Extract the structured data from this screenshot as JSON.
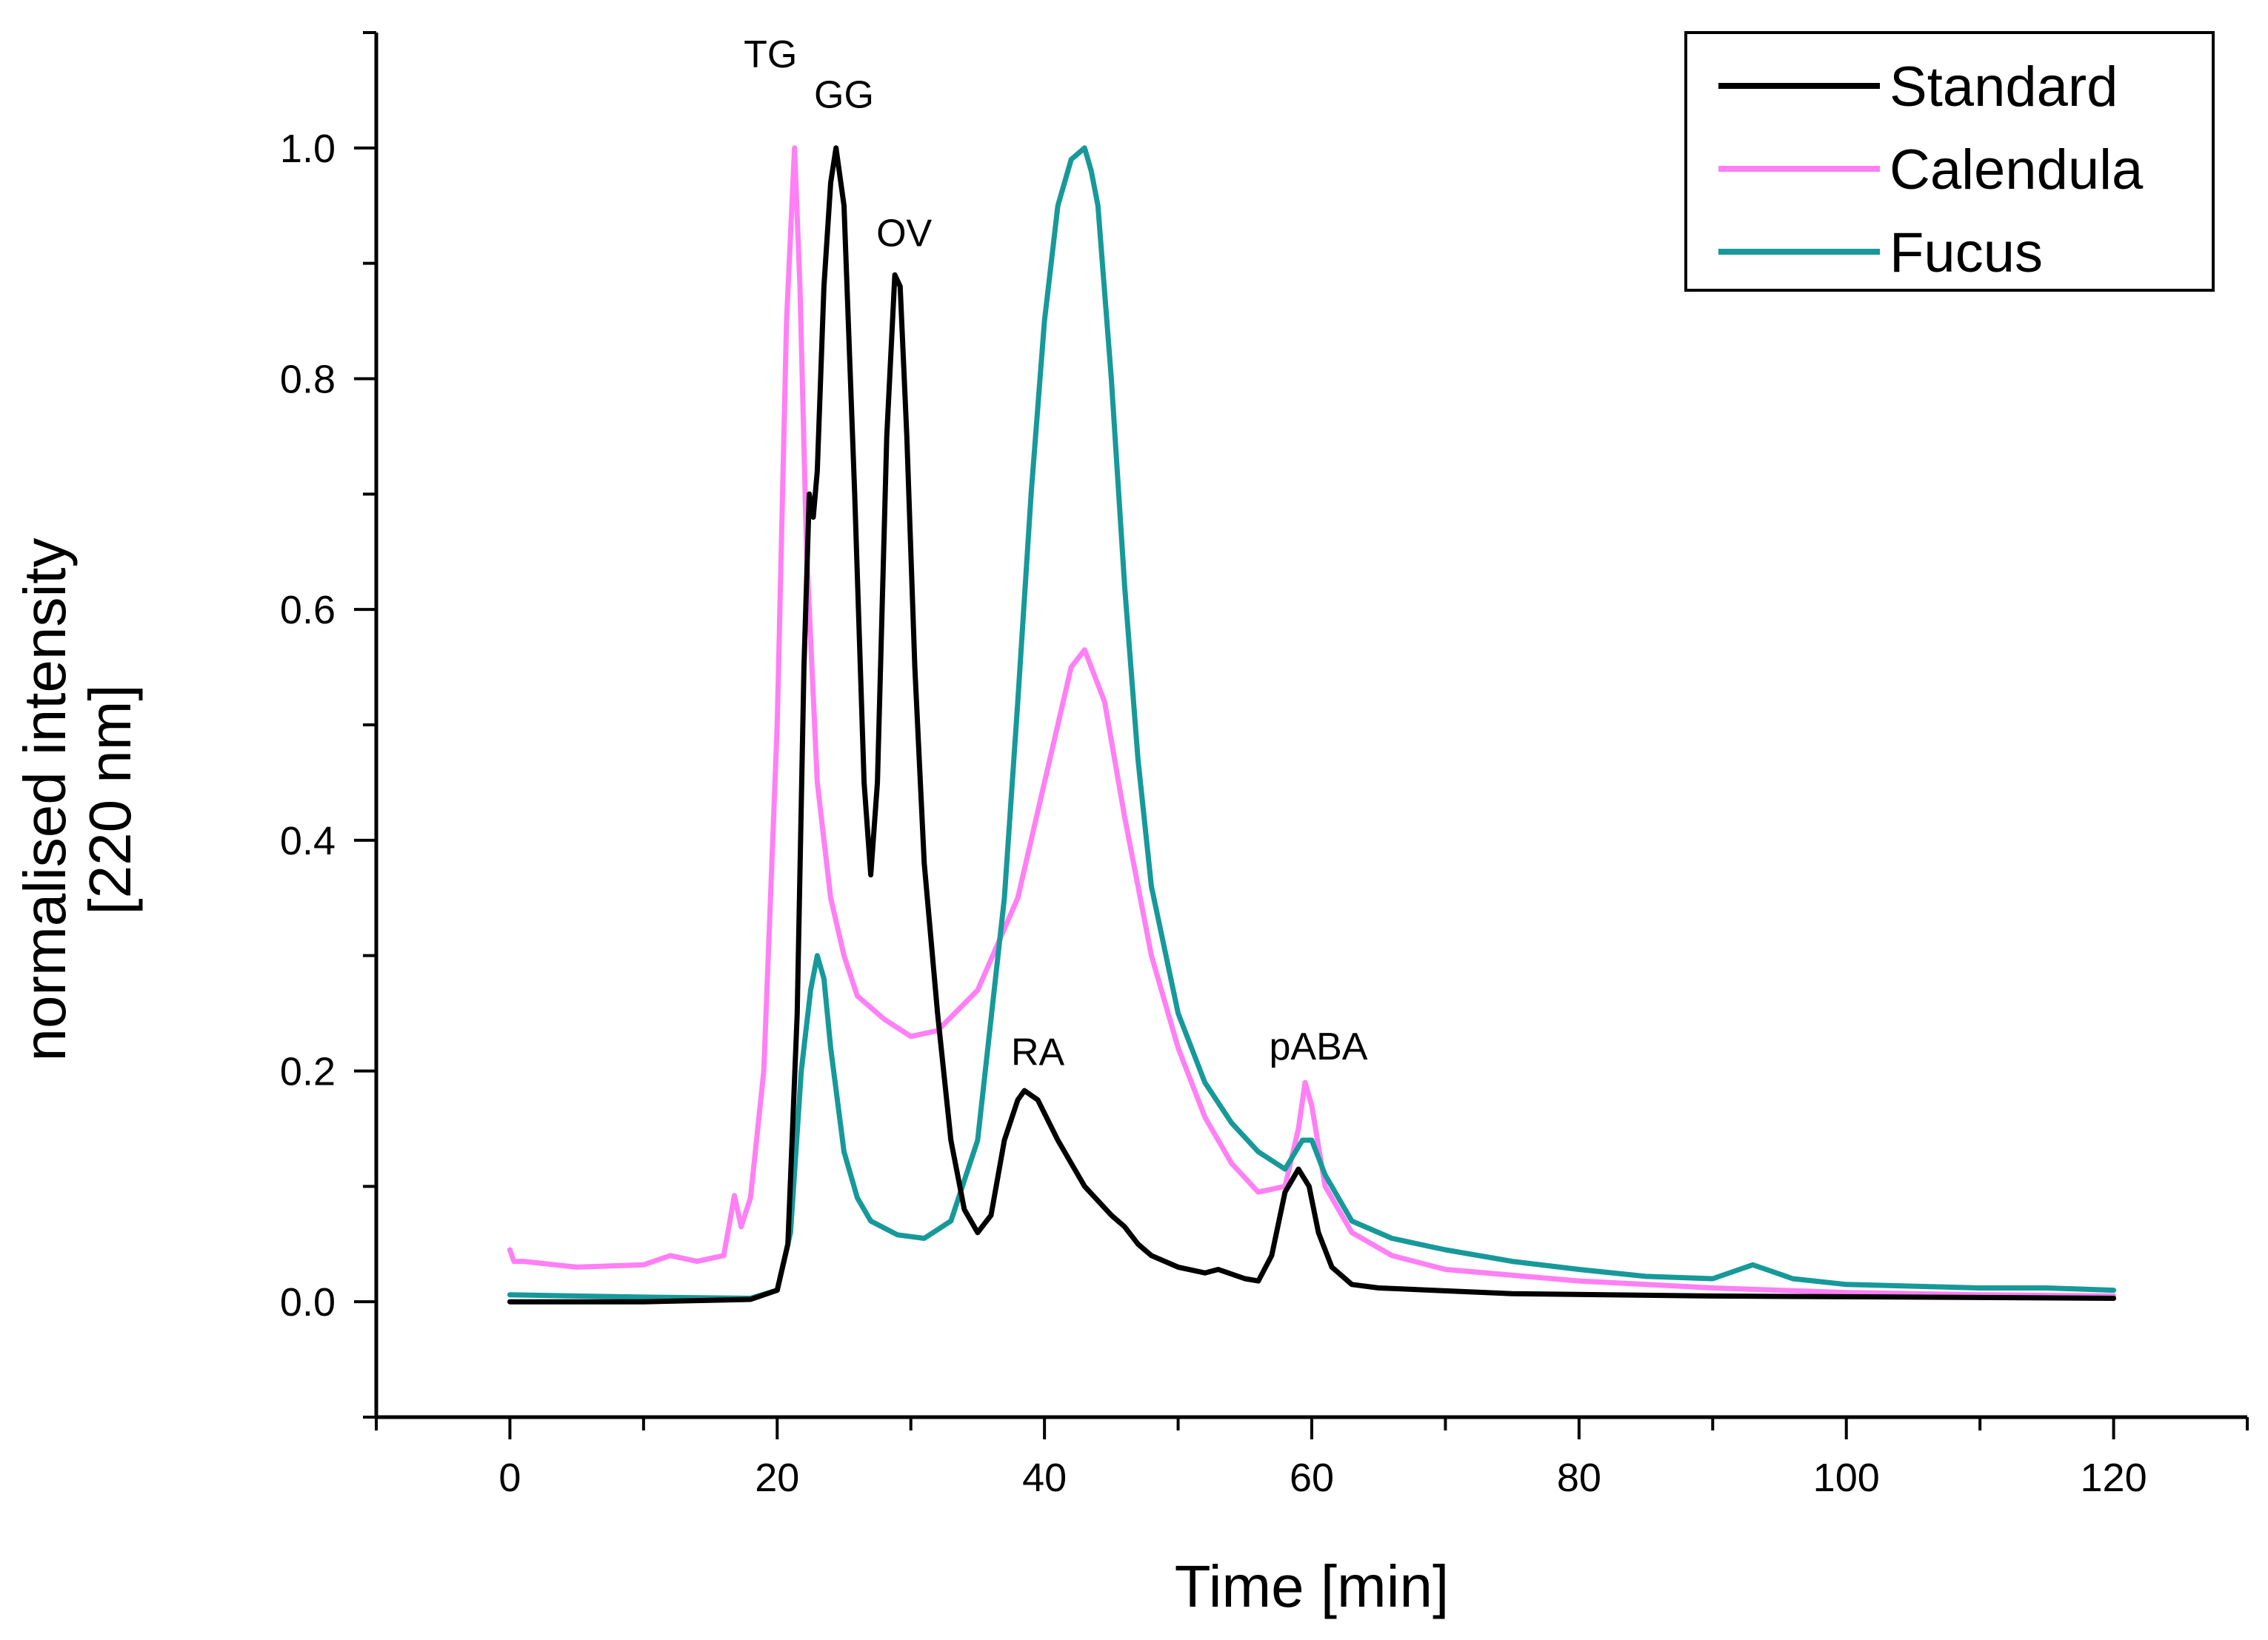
{
  "chart_data": {
    "type": "line",
    "title": "",
    "xlabel": "Time [min]",
    "ylabel": [
      "normalised intensity",
      "[220 nm]"
    ],
    "xlim": [
      -10,
      130
    ],
    "ylim": [
      -0.1,
      1.1
    ],
    "x_ticks": [
      0,
      20,
      40,
      60,
      80,
      100,
      120
    ],
    "x_tick_labels": [
      "0",
      "20",
      "40",
      "60",
      "80",
      "100",
      "120"
    ],
    "y_ticks": [
      0.0,
      0.2,
      0.4,
      0.6,
      0.8,
      1.0
    ],
    "y_tick_labels": [
      "0.0",
      "0.2",
      "0.4",
      "0.6",
      "0.8",
      "1.0"
    ],
    "grid": false,
    "legend_position": "top-right",
    "series": [
      {
        "name": "Standard",
        "color": "#000000",
        "x": [
          0,
          10,
          18,
          20,
          20.8,
          21.5,
          22.0,
          22.4,
          22.7,
          23.0,
          23.5,
          24.0,
          24.4,
          25.0,
          25.8,
          26.5,
          27.0,
          27.5,
          28.2,
          28.8,
          29.2,
          29.7,
          30.3,
          31.0,
          32.0,
          33.0,
          34.0,
          35.0,
          36.0,
          37.0,
          38.0,
          38.5,
          39.5,
          41.0,
          43.0,
          45.0,
          46.0,
          47.0,
          48.0,
          50.0,
          52.0,
          53.0,
          55.0,
          56.0,
          57.0,
          58.0,
          59.0,
          59.8,
          60.5,
          61.5,
          63.0,
          65.0,
          69.0,
          75.0,
          90.0,
          105.0,
          120.0
        ],
        "values": [
          0.0,
          0.0,
          0.002,
          0.01,
          0.05,
          0.25,
          0.55,
          0.7,
          0.68,
          0.72,
          0.88,
          0.97,
          1.0,
          0.95,
          0.7,
          0.45,
          0.37,
          0.45,
          0.75,
          0.89,
          0.88,
          0.75,
          0.55,
          0.38,
          0.25,
          0.14,
          0.08,
          0.06,
          0.075,
          0.14,
          0.175,
          0.183,
          0.175,
          0.14,
          0.1,
          0.075,
          0.065,
          0.05,
          0.04,
          0.03,
          0.025,
          0.028,
          0.02,
          0.018,
          0.04,
          0.095,
          0.115,
          0.1,
          0.06,
          0.03,
          0.015,
          0.012,
          0.01,
          0.007,
          0.005,
          0.004,
          0.003
        ]
      },
      {
        "name": "Calendula",
        "color": "#ff7ff5",
        "x": [
          0,
          0.3,
          1.0,
          5.0,
          10.0,
          12.0,
          14.0,
          16.0,
          16.8,
          17.3,
          18.0,
          19.0,
          20.0,
          20.7,
          21.3,
          21.7,
          22.2,
          23.0,
          24.0,
          25.0,
          26.0,
          28.0,
          30.0,
          32.0,
          35.0,
          38.0,
          40.0,
          42.0,
          43.0,
          44.5,
          46.0,
          48.0,
          50.0,
          52.0,
          54.0,
          56.0,
          58.0,
          59.0,
          59.5,
          60.0,
          61.0,
          63.0,
          66.0,
          70.0,
          80.0,
          90.0,
          100.0,
          110.0,
          120.0
        ],
        "values": [
          0.045,
          0.035,
          0.035,
          0.03,
          0.032,
          0.04,
          0.035,
          0.04,
          0.092,
          0.065,
          0.09,
          0.2,
          0.5,
          0.85,
          1.0,
          0.88,
          0.65,
          0.45,
          0.35,
          0.3,
          0.265,
          0.245,
          0.23,
          0.235,
          0.27,
          0.35,
          0.45,
          0.55,
          0.565,
          0.52,
          0.42,
          0.3,
          0.22,
          0.16,
          0.12,
          0.095,
          0.1,
          0.15,
          0.19,
          0.17,
          0.1,
          0.06,
          0.04,
          0.028,
          0.018,
          0.012,
          0.008,
          0.006,
          0.005
        ]
      },
      {
        "name": "Fucus",
        "color": "#17999a",
        "x": [
          0,
          10,
          18,
          20,
          21,
          21.8,
          22.5,
          23.0,
          23.5,
          24.0,
          25.0,
          26.0,
          27.0,
          29.0,
          31.0,
          33.0,
          35.0,
          37.0,
          38.0,
          39.0,
          40.0,
          41.0,
          42.0,
          43.0,
          43.5,
          44.0,
          45.0,
          46.0,
          47.0,
          48.0,
          50.0,
          52.0,
          54.0,
          56.0,
          58.0,
          59.3,
          60.0,
          61.0,
          63.0,
          66.0,
          70.0,
          75.0,
          80.0,
          85.0,
          90.0,
          92.0,
          93.0,
          94.0,
          96.0,
          100.0,
          110.0,
          115.0,
          120.0
        ],
        "values": [
          0.006,
          0.004,
          0.003,
          0.01,
          0.06,
          0.2,
          0.27,
          0.3,
          0.28,
          0.22,
          0.13,
          0.09,
          0.07,
          0.058,
          0.055,
          0.07,
          0.14,
          0.35,
          0.52,
          0.7,
          0.85,
          0.95,
          0.99,
          1.0,
          0.98,
          0.95,
          0.8,
          0.62,
          0.47,
          0.36,
          0.25,
          0.19,
          0.155,
          0.13,
          0.115,
          0.14,
          0.14,
          0.11,
          0.07,
          0.055,
          0.045,
          0.035,
          0.028,
          0.022,
          0.02,
          0.028,
          0.032,
          0.028,
          0.02,
          0.015,
          0.012,
          0.012,
          0.01
        ]
      }
    ],
    "annotations": [
      {
        "text": "TG",
        "x": 19.5,
        "y": 1.07
      },
      {
        "text": "GG",
        "x": 25.0,
        "y": 1.035
      },
      {
        "text": "OV",
        "x": 29.5,
        "y": 0.915
      },
      {
        "text": "RA",
        "x": 39.5,
        "y": 0.205
      },
      {
        "text": "pABA",
        "x": 60.5,
        "y": 0.21
      }
    ]
  }
}
